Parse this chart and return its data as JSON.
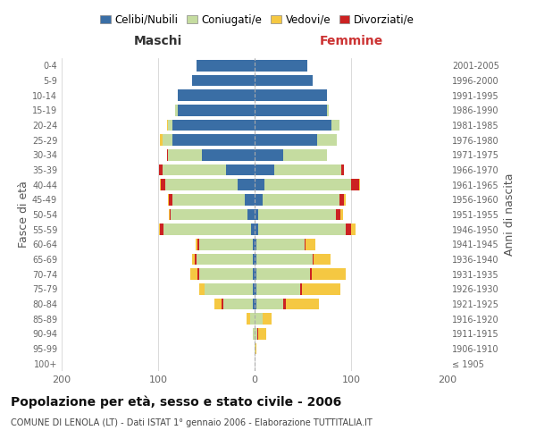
{
  "age_groups": [
    "100+",
    "95-99",
    "90-94",
    "85-89",
    "80-84",
    "75-79",
    "70-74",
    "65-69",
    "60-64",
    "55-59",
    "50-54",
    "45-49",
    "40-44",
    "35-39",
    "30-34",
    "25-29",
    "20-24",
    "15-19",
    "10-14",
    "5-9",
    "0-4"
  ],
  "birth_years": [
    "≤ 1905",
    "1906-1910",
    "1911-1915",
    "1916-1920",
    "1921-1925",
    "1926-1930",
    "1931-1935",
    "1936-1940",
    "1941-1945",
    "1946-1950",
    "1951-1955",
    "1956-1960",
    "1961-1965",
    "1966-1970",
    "1971-1975",
    "1976-1980",
    "1981-1985",
    "1986-1990",
    "1991-1995",
    "1996-2000",
    "2001-2005"
  ],
  "males": {
    "celibi": [
      0,
      0,
      0,
      0,
      2,
      2,
      2,
      2,
      2,
      4,
      7,
      10,
      18,
      30,
      55,
      85,
      85,
      80,
      80,
      65,
      60
    ],
    "coniugati": [
      0,
      0,
      2,
      5,
      30,
      50,
      55,
      58,
      55,
      90,
      80,
      75,
      75,
      65,
      35,
      10,
      5,
      2,
      0,
      0,
      0
    ],
    "vedovi": [
      0,
      0,
      0,
      3,
      8,
      5,
      8,
      3,
      2,
      1,
      1,
      1,
      1,
      0,
      0,
      3,
      1,
      0,
      0,
      0,
      0
    ],
    "divorziati": [
      0,
      0,
      0,
      0,
      2,
      0,
      2,
      2,
      2,
      4,
      1,
      4,
      4,
      4,
      1,
      0,
      0,
      0,
      0,
      0,
      0
    ]
  },
  "females": {
    "nubili": [
      0,
      0,
      0,
      0,
      2,
      2,
      2,
      2,
      2,
      4,
      4,
      8,
      10,
      20,
      30,
      65,
      80,
      75,
      75,
      60,
      55
    ],
    "coniugate": [
      0,
      1,
      3,
      8,
      28,
      45,
      55,
      58,
      50,
      90,
      80,
      80,
      90,
      70,
      45,
      20,
      8,
      2,
      0,
      0,
      0
    ],
    "vedove": [
      0,
      1,
      8,
      10,
      35,
      40,
      35,
      18,
      10,
      5,
      3,
      1,
      1,
      0,
      0,
      0,
      0,
      0,
      0,
      0,
      0
    ],
    "divorziate": [
      0,
      0,
      1,
      0,
      2,
      2,
      2,
      1,
      1,
      6,
      5,
      5,
      8,
      3,
      0,
      0,
      0,
      0,
      0,
      0,
      0
    ]
  },
  "colors": {
    "celibi_nubili": "#3A6EA5",
    "coniugati_e": "#C5DCA0",
    "vedovi_e": "#F5C842",
    "divorziati_e": "#CC2222"
  },
  "xlim": 200,
  "title": "Popolazione per età, sesso e stato civile - 2006",
  "subtitle": "COMUNE DI LENOLA (LT) - Dati ISTAT 1° gennaio 2006 - Elaborazione TUTTITALIA.IT",
  "ylabel_left": "Fasce di età",
  "ylabel_right": "Anni di nascita",
  "xlabel_maschi": "Maschi",
  "xlabel_femmine": "Femmine",
  "legend_labels": [
    "Celibi/Nubili",
    "Coniugati/e",
    "Vedovi/e",
    "Divorziati/e"
  ],
  "background_color": "#ffffff",
  "grid_color": "#cccccc"
}
